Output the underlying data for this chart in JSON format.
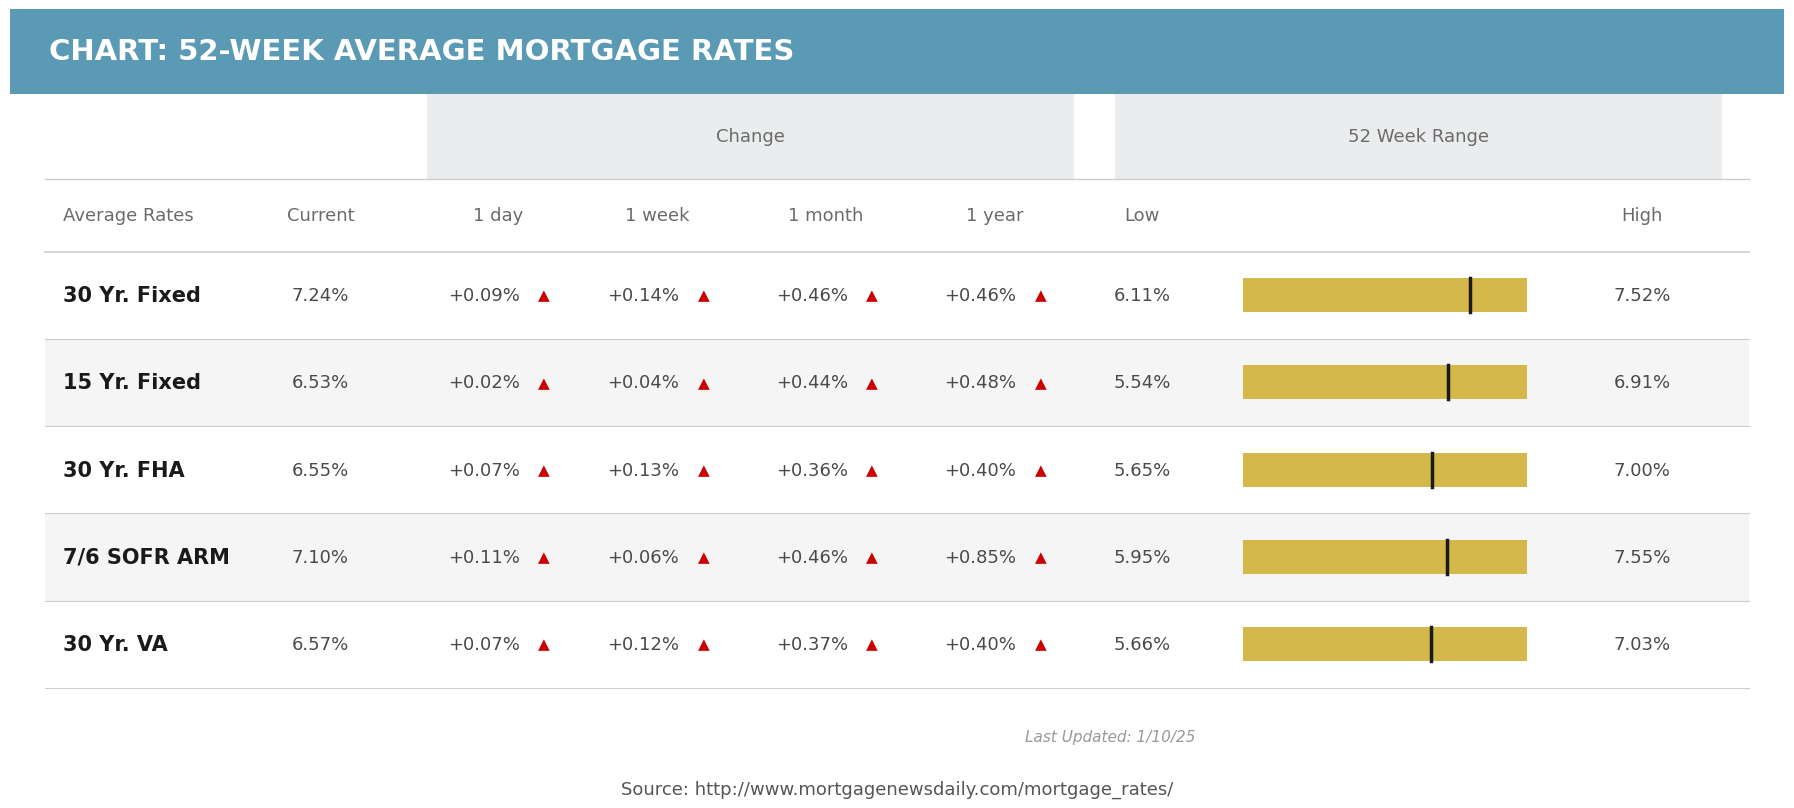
{
  "title": "CHART: 52-WEEK AVERAGE MORTGAGE RATES",
  "title_bg": "#5b9ab5",
  "title_color": "#ffffff",
  "source": "Source: http://www.mortgagenewsdaily.com/mortgage_rates/",
  "last_updated": "Last Updated: 1/10/25",
  "header_bg": "#eaecee",
  "subheader_change": "Change",
  "subheader_range": "52 Week Range",
  "rows": [
    {
      "name": "30 Yr. Fixed",
      "current": "7.24%",
      "day": "+0.09%",
      "week": "+0.14%",
      "month": "+0.46%",
      "year": "+0.46%",
      "low": 6.11,
      "high": 7.52,
      "current_val": 7.24,
      "low_str": "6.11%",
      "high_str": "7.52%"
    },
    {
      "name": "15 Yr. Fixed",
      "current": "6.53%",
      "day": "+0.02%",
      "week": "+0.04%",
      "month": "+0.44%",
      "year": "+0.48%",
      "low": 5.54,
      "high": 6.91,
      "current_val": 6.53,
      "low_str": "5.54%",
      "high_str": "6.91%"
    },
    {
      "name": "30 Yr. FHA",
      "current": "6.55%",
      "day": "+0.07%",
      "week": "+0.13%",
      "month": "+0.36%",
      "year": "+0.40%",
      "low": 5.65,
      "high": 7.0,
      "current_val": 6.55,
      "low_str": "5.65%",
      "high_str": "7.00%"
    },
    {
      "name": "7/6 SOFR ARM",
      "current": "7.10%",
      "day": "+0.11%",
      "week": "+0.06%",
      "month": "+0.46%",
      "year": "+0.85%",
      "low": 5.95,
      "high": 7.55,
      "current_val": 7.1,
      "low_str": "5.95%",
      "high_str": "7.55%"
    },
    {
      "name": "30 Yr. VA",
      "current": "6.57%",
      "day": "+0.07%",
      "week": "+0.12%",
      "month": "+0.37%",
      "year": "+0.40%",
      "low": 5.66,
      "high": 7.03,
      "current_val": 6.57,
      "low_str": "5.66%",
      "high_str": "7.03%"
    }
  ],
  "arrow_color": "#cc0000",
  "change_color": "#4a4a4a",
  "row_name_color": "#1a1a1a",
  "header_text_color": "#6b6b6b",
  "bar_fill_color": "#d4b84a",
  "bar_marker_color": "#1a1a1a",
  "row_bg_even": "#ffffff",
  "row_bg_odd": "#f5f5f5",
  "grid_color": "#cccccc",
  "outer_bg": "#ffffff",
  "title_fontsize": 21,
  "header_fontsize": 13,
  "subheader_fontsize": 13,
  "row_name_fontsize": 15,
  "cell_fontsize": 13,
  "arrow_fontsize": 11
}
